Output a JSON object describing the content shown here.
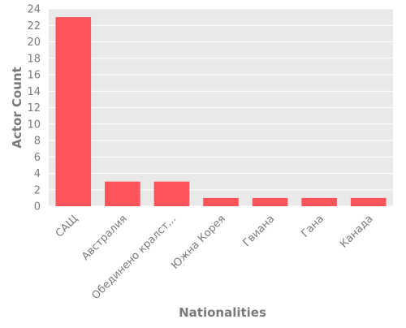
{
  "chart_data": {
    "type": "bar",
    "categories": [
      "САЩ",
      "Австралия",
      "Обединено кралст...",
      "Южна Корея",
      "Гвиана",
      "Гана",
      "Канада"
    ],
    "values": [
      23,
      3,
      3,
      1,
      1,
      1,
      1
    ],
    "title": "",
    "xlabel": "Nationalities",
    "ylabel": "Actor Count",
    "ylim": [
      0,
      24
    ],
    "yticks": [
      0,
      2,
      4,
      6,
      8,
      10,
      12,
      14,
      16,
      18,
      20,
      22,
      24
    ],
    "grid": true,
    "bar_color": "#ff5459",
    "plot_background": "#e9e9e9",
    "grid_color": "#ffffff"
  }
}
